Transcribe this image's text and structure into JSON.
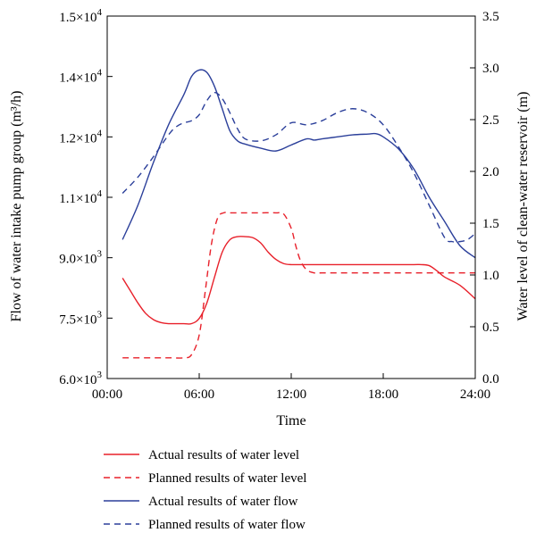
{
  "chart_data": {
    "type": "line",
    "xlabel": "Time",
    "ylabel_left": "Flow of water intake pump group (m³/h)",
    "ylabel_right": "Water level of clean-water reservoir (m)",
    "xlim": [
      0,
      24
    ],
    "ylim_left": [
      6000,
      15000
    ],
    "ylim_right": [
      0,
      3.5
    ],
    "x_ticks": [
      {
        "value": 0,
        "label": "00:00"
      },
      {
        "value": 6,
        "label": "06:00"
      },
      {
        "value": 12,
        "label": "12:00"
      },
      {
        "value": 18,
        "label": "18:00"
      },
      {
        "value": 24,
        "label": "24:00"
      }
    ],
    "y_left_ticks": [
      {
        "value": 6000,
        "mant": "6.0×10",
        "exp": "3"
      },
      {
        "value": 7500,
        "mant": "7.5×10",
        "exp": "3"
      },
      {
        "value": 9000,
        "mant": "9.0×10",
        "exp": "3"
      },
      {
        "value": 10500,
        "mant": "1.1×10",
        "exp": "4"
      },
      {
        "value": 12000,
        "mant": "1.2×10",
        "exp": "4"
      },
      {
        "value": 13500,
        "mant": "1.4×10",
        "exp": "4"
      },
      {
        "value": 15000,
        "mant": "1.5×10",
        "exp": "4"
      }
    ],
    "y_right_ticks": [
      "0.0",
      "0.5",
      "1.0",
      "1.5",
      "2.0",
      "2.5",
      "3.0",
      "3.5"
    ],
    "grid": false,
    "legend_position": "below",
    "series": [
      {
        "name": "Actual results of water level",
        "axis": "right",
        "color": "#e8202a",
        "dash": "solid",
        "x": [
          1,
          1.5,
          2,
          2.5,
          3,
          3.5,
          4,
          5,
          5.5,
          6,
          6.5,
          7,
          7.5,
          8,
          8.5,
          9,
          9.5,
          10,
          10.5,
          11,
          11.5,
          12,
          13,
          14,
          15,
          16,
          17,
          18,
          19,
          20,
          20.5,
          21,
          21.5,
          22,
          23,
          24
        ],
        "y": [
          0.97,
          0.85,
          0.73,
          0.63,
          0.57,
          0.54,
          0.53,
          0.53,
          0.53,
          0.58,
          0.73,
          0.98,
          1.22,
          1.34,
          1.37,
          1.37,
          1.36,
          1.31,
          1.22,
          1.15,
          1.11,
          1.1,
          1.1,
          1.1,
          1.1,
          1.1,
          1.1,
          1.1,
          1.1,
          1.1,
          1.1,
          1.09,
          1.04,
          0.98,
          0.9,
          0.77
        ]
      },
      {
        "name": "Planned results of water level",
        "axis": "right",
        "color": "#e8202a",
        "dash": "dashed",
        "x": [
          1,
          2,
          3,
          4,
          5,
          5.5,
          6,
          6.4,
          6.8,
          7.2,
          7.6,
          8,
          9,
          10,
          11,
          11.5,
          12,
          12.3,
          12.6,
          13,
          13.5,
          14,
          15,
          16,
          17,
          18,
          19,
          20,
          21,
          22,
          23,
          24
        ],
        "y": [
          0.2,
          0.2,
          0.2,
          0.2,
          0.2,
          0.23,
          0.42,
          0.85,
          1.3,
          1.55,
          1.6,
          1.6,
          1.6,
          1.6,
          1.6,
          1.59,
          1.45,
          1.28,
          1.14,
          1.05,
          1.02,
          1.02,
          1.02,
          1.02,
          1.02,
          1.02,
          1.02,
          1.02,
          1.02,
          1.02,
          1.02,
          1.02
        ]
      },
      {
        "name": "Actual results of water flow",
        "axis": "left",
        "color": "#2b3f9a",
        "dash": "solid",
        "x": [
          1,
          2,
          3,
          4,
          5,
          5.5,
          6,
          6.5,
          7,
          7.5,
          8,
          8.5,
          9,
          10,
          11,
          12,
          13,
          13.5,
          14,
          15,
          16,
          17,
          17.5,
          18,
          19,
          20,
          21,
          22,
          23,
          24
        ],
        "y": [
          9450,
          10300,
          11350,
          12300,
          13050,
          13500,
          13660,
          13600,
          13250,
          12700,
          12150,
          11900,
          11820,
          11720,
          11650,
          11800,
          11950,
          11920,
          11950,
          12000,
          12050,
          12070,
          12080,
          12000,
          11700,
          11200,
          10500,
          9900,
          9300,
          9000
        ]
      },
      {
        "name": "Planned results of water flow",
        "axis": "left",
        "color": "#2b3f9a",
        "dash": "dashed",
        "x": [
          1,
          2,
          3,
          4,
          4.5,
          5,
          5.5,
          6,
          6.5,
          7,
          7.5,
          8,
          8.5,
          9,
          10,
          11,
          12,
          13,
          14,
          15,
          16,
          17,
          18,
          19,
          20,
          21,
          22,
          22.5,
          23,
          23.5,
          24
        ],
        "y": [
          10600,
          11000,
          11500,
          12050,
          12250,
          12350,
          12400,
          12550,
          12900,
          13100,
          12950,
          12600,
          12200,
          11950,
          11900,
          12050,
          12350,
          12300,
          12400,
          12600,
          12700,
          12600,
          12300,
          11750,
          11100,
          10300,
          9500,
          9400,
          9400,
          9450,
          9600
        ]
      }
    ]
  }
}
